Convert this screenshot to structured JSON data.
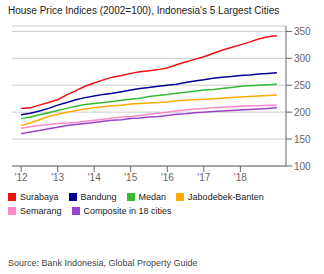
{
  "chart_data": {
    "type": "line",
    "title": "House Price Indices (2002=100), Indonesia's 5 Largest Cities",
    "source": "Source: Bank Indonesia, Global Property Guide",
    "x": [
      2012.0,
      2012.25,
      2012.5,
      2012.75,
      2013.0,
      2013.25,
      2013.5,
      2013.75,
      2014.0,
      2014.25,
      2014.5,
      2014.75,
      2015.0,
      2015.25,
      2015.5,
      2015.75,
      2016.0,
      2016.25,
      2016.5,
      2016.75,
      2017.0,
      2017.25,
      2017.5,
      2017.75,
      2018.0,
      2018.25,
      2018.5,
      2018.75,
      2019.0
    ],
    "series": [
      {
        "name": "Surabaya",
        "color": "#ee1111",
        "values": [
          207,
          208,
          213,
          218,
          223,
          232,
          240,
          248,
          254,
          260,
          265,
          268,
          272,
          275,
          277,
          279,
          282,
          288,
          293,
          298,
          303,
          309,
          315,
          320,
          325,
          330,
          336,
          340,
          342
        ]
      },
      {
        "name": "Bandung",
        "color": "#000099",
        "values": [
          195,
          198,
          202,
          207,
          213,
          218,
          223,
          227,
          230,
          233,
          235,
          238,
          241,
          244,
          246,
          248,
          250,
          252,
          255,
          258,
          260,
          263,
          265,
          266,
          268,
          269,
          271,
          272,
          273
        ]
      },
      {
        "name": "Medan",
        "color": "#33bb33",
        "values": [
          188,
          191,
          195,
          199,
          203,
          207,
          211,
          214,
          216,
          218,
          220,
          222,
          224,
          226,
          229,
          231,
          233,
          235,
          237,
          239,
          241,
          242,
          244,
          246,
          248,
          249,
          250,
          251,
          252
        ]
      },
      {
        "name": "Jabodebek-Banten",
        "color": "#ffaa00",
        "values": [
          175,
          180,
          186,
          192,
          196,
          200,
          203,
          206,
          208,
          210,
          212,
          213,
          215,
          216,
          217,
          218,
          219,
          221,
          222,
          223,
          224,
          225,
          226,
          227,
          228,
          229,
          230,
          231,
          232
        ]
      },
      {
        "name": "Semarang",
        "color": "#ff88cc",
        "values": [
          170,
          173,
          175,
          177,
          179,
          180,
          181,
          183,
          185,
          187,
          189,
          191,
          192,
          194,
          196,
          198,
          200,
          202,
          204,
          206,
          207,
          208,
          209,
          210,
          211,
          212,
          212,
          213,
          213
        ]
      },
      {
        "name": "Composite in 18 cities",
        "color": "#9944cc",
        "values": [
          160,
          163,
          166,
          169,
          172,
          175,
          177,
          179,
          181,
          183,
          185,
          186,
          188,
          189,
          191,
          192,
          194,
          196,
          197,
          199,
          200,
          201,
          202,
          203,
          204,
          205,
          206,
          207,
          208
        ]
      }
    ],
    "xlim": [
      2011.75,
      2019.25
    ],
    "xticks": [
      {
        "value": 2012,
        "label": "'12"
      },
      {
        "value": 2013,
        "label": "'13"
      },
      {
        "value": 2014,
        "label": "'14"
      },
      {
        "value": 2015,
        "label": "'15"
      },
      {
        "value": 2016,
        "label": "'16"
      },
      {
        "value": 2017,
        "label": "'17"
      },
      {
        "value": 2018,
        "label": "'18"
      }
    ],
    "ylim": [
      100,
      360
    ],
    "yticks": [
      100,
      150,
      200,
      250,
      300,
      350
    ],
    "grid": true,
    "legend": "bottom"
  }
}
